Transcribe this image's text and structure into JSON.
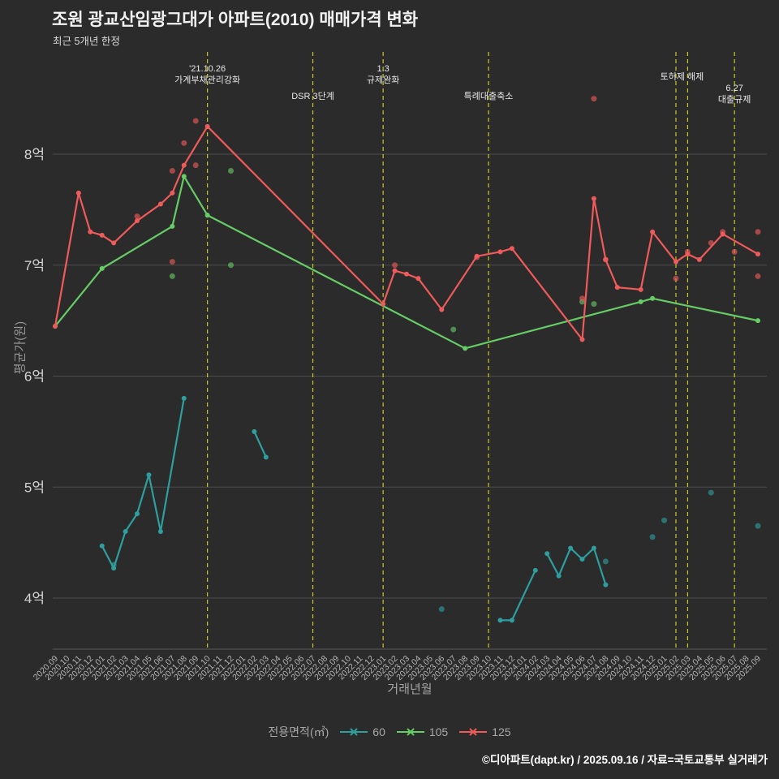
{
  "chart_data": {
    "type": "line",
    "title": "조원 광교산임광그대가 아파트(2010) 매매가격 변화",
    "subtitle": "최근 5개년 한정",
    "xlabel": "거래년월",
    "ylabel": "평균가(원)",
    "legend_title": "전용면적(㎡)",
    "ylim": [
      3.5,
      8.9
    ],
    "grid": true,
    "legend_position": "bottom",
    "annotation_color": "#c9c91f",
    "y_ticks": [
      {
        "label": "4억",
        "value": 4
      },
      {
        "label": "5억",
        "value": 5
      },
      {
        "label": "6억",
        "value": 6
      },
      {
        "label": "7억",
        "value": 7
      },
      {
        "label": "8억",
        "value": 8
      }
    ],
    "categories": [
      "2020.09",
      "2020.10",
      "2020.11",
      "2020.12",
      "2021.01",
      "2021.02",
      "2021.03",
      "2021.04",
      "2021.05",
      "2021.06",
      "2021.07",
      "2021.08",
      "2021.09",
      "2021.10",
      "2021.11",
      "2021.12",
      "2022.01",
      "2022.02",
      "2022.03",
      "2022.04",
      "2022.05",
      "2022.06",
      "2022.07",
      "2022.08",
      "2022.09",
      "2022.10",
      "2022.11",
      "2022.12",
      "2023.01",
      "2023.02",
      "2023.03",
      "2023.04",
      "2023.05",
      "2023.06",
      "2023.07",
      "2023.08",
      "2023.09",
      "2023.10",
      "2023.11",
      "2023.12",
      "2024.01",
      "2024.02",
      "2024.03",
      "2024.04",
      "2024.05",
      "2024.06",
      "2024.07",
      "2024.08",
      "2024.09",
      "2024.10",
      "2024.11",
      "2024.12",
      "2025.01",
      "2025.02",
      "2025.03",
      "2025.04",
      "2025.05",
      "2025.06",
      "2025.07",
      "2025.08",
      "2025.09"
    ],
    "annotations": [
      {
        "month": "2021.10",
        "label_lines": [
          "'21.10.26",
          "가계부채관리강화"
        ],
        "label_y": 88,
        "label_dx": 0
      },
      {
        "month": "2022.07",
        "label_lines": [
          "DSR 3단계"
        ],
        "label_y": 122,
        "label_dx": 0
      },
      {
        "month": "2023.01",
        "label_lines": [
          "1.3",
          "규제완화"
        ],
        "label_y": 88,
        "label_dx": 0
      },
      {
        "month": "2023.10",
        "label_lines": [
          "특례대출축소"
        ],
        "label_y": 122,
        "label_dx": 0
      },
      {
        "month": "2025.02",
        "label_lines": [],
        "label_y": 0,
        "label_dx": 0
      },
      {
        "month": "2025.03",
        "label_lines": [
          "토허제 해제"
        ],
        "label_y": 98,
        "label_dx": -7
      },
      {
        "month": "2025.07",
        "label_lines": [
          "6.27",
          "대출규제"
        ],
        "label_y": 112,
        "label_dx": 0
      }
    ],
    "series": [
      {
        "name": "60",
        "color": "#2e9e9e",
        "segments": [
          [
            [
              "2021.01",
              4.47
            ],
            [
              "2021.02",
              4.27
            ],
            [
              "2021.03",
              4.6
            ],
            [
              "2021.04",
              4.76
            ],
            [
              "2021.05",
              5.11
            ],
            [
              "2021.06",
              4.6
            ],
            [
              "2021.08",
              5.8
            ]
          ],
          [
            [
              "2022.02",
              5.5
            ],
            [
              "2022.03",
              5.27
            ]
          ],
          [
            [
              "2023.11",
              3.8
            ],
            [
              "2023.12",
              3.8
            ],
            [
              "2024.02",
              4.25
            ]
          ],
          [
            [
              "2024.03",
              4.4
            ],
            [
              "2024.04",
              4.2
            ],
            [
              "2024.05",
              4.45
            ],
            [
              "2024.06",
              4.35
            ],
            [
              "2024.07",
              4.45
            ],
            [
              "2024.08",
              4.12
            ]
          ]
        ],
        "scatter": [
          [
            "2021.02",
            4.3
          ],
          [
            "2023.06",
            3.9
          ],
          [
            "2024.08",
            4.33
          ],
          [
            "2024.12",
            4.55
          ],
          [
            "2025.01",
            4.7
          ],
          [
            "2025.05",
            4.95
          ],
          [
            "2025.09",
            4.65
          ]
        ]
      },
      {
        "name": "105",
        "color": "#66cc66",
        "segments": [
          [
            [
              "2020.09",
              6.45
            ],
            [
              "2021.01",
              6.97
            ],
            [
              "2021.07",
              7.35
            ],
            [
              "2021.08",
              7.8
            ],
            [
              "2021.10",
              7.45
            ],
            [
              "2023.08",
              6.25
            ],
            [
              "2024.11",
              6.67
            ],
            [
              "2024.12",
              6.7
            ],
            [
              "2025.09",
              6.5
            ]
          ]
        ],
        "scatter": [
          [
            "2021.07",
            6.9
          ],
          [
            "2021.12",
            7.85
          ],
          [
            "2021.12",
            7.0
          ],
          [
            "2023.07",
            6.42
          ],
          [
            "2024.06",
            6.67
          ],
          [
            "2024.07",
            6.65
          ]
        ]
      },
      {
        "name": "125",
        "color": "#ef5a5a",
        "segments": [
          [
            [
              "2020.09",
              6.45
            ],
            [
              "2020.11",
              7.65
            ],
            [
              "2020.12",
              7.3
            ],
            [
              "2021.01",
              7.27
            ],
            [
              "2021.02",
              7.2
            ],
            [
              "2021.04",
              7.4
            ],
            [
              "2021.06",
              7.55
            ],
            [
              "2021.07",
              7.65
            ],
            [
              "2021.08",
              7.9
            ],
            [
              "2021.10",
              8.25
            ],
            [
              "2023.01",
              6.65
            ],
            [
              "2023.02",
              6.95
            ],
            [
              "2023.03",
              6.92
            ],
            [
              "2023.04",
              6.88
            ],
            [
              "2023.06",
              6.6
            ],
            [
              "2023.09",
              7.08
            ],
            [
              "2023.11",
              7.12
            ],
            [
              "2023.12",
              7.15
            ],
            [
              "2024.06",
              6.33
            ],
            [
              "2024.07",
              7.6
            ],
            [
              "2024.08",
              7.05
            ],
            [
              "2024.09",
              6.8
            ],
            [
              "2024.11",
              6.78
            ],
            [
              "2024.12",
              7.3
            ],
            [
              "2025.02",
              7.03
            ],
            [
              "2025.03",
              7.1
            ],
            [
              "2025.04",
              7.05
            ],
            [
              "2025.06",
              7.28
            ],
            [
              "2025.09",
              7.1
            ]
          ]
        ],
        "scatter": [
          [
            "2021.04",
            7.44
          ],
          [
            "2021.07",
            7.03
          ],
          [
            "2021.07",
            7.85
          ],
          [
            "2021.08",
            8.1
          ],
          [
            "2021.09",
            8.3
          ],
          [
            "2021.09",
            7.9
          ],
          [
            "2023.02",
            7.0
          ],
          [
            "2023.09",
            7.07
          ],
          [
            "2024.07",
            8.5
          ],
          [
            "2024.06",
            6.7
          ],
          [
            "2024.08",
            7.05
          ],
          [
            "2025.02",
            6.88
          ],
          [
            "2025.03",
            7.12
          ],
          [
            "2025.05",
            7.2
          ],
          [
            "2025.06",
            7.3
          ],
          [
            "2025.07",
            7.12
          ],
          [
            "2025.09",
            7.3
          ],
          [
            "2025.09",
            6.9
          ]
        ]
      }
    ]
  },
  "footer": {
    "credit": "©디아파트(dapt.kr) / 2025.09.16 / 자료=국토교통부 실거래가"
  },
  "colors": {
    "background": "#2b2b2b",
    "grid": "#4d4d4d"
  }
}
